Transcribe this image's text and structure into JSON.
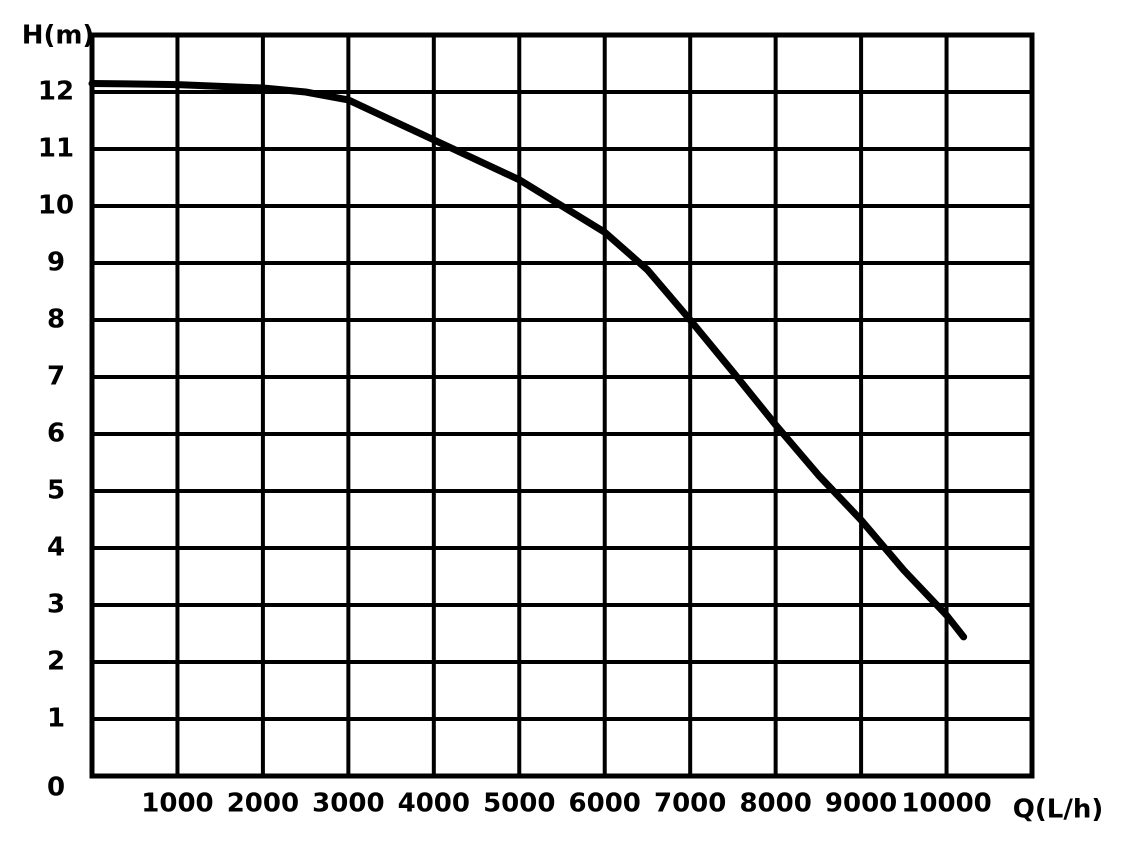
{
  "chart_data": {
    "type": "line",
    "y_label": "H(m)",
    "x_label": "Q(L/h)",
    "x": [
      0,
      1000,
      2000,
      2500,
      3000,
      4000,
      5000,
      5500,
      6000,
      6500,
      7000,
      7500,
      8000,
      8500,
      9000,
      9500,
      10000,
      10200
    ],
    "values": [
      12.15,
      12.13,
      12.07,
      12.0,
      11.86,
      11.16,
      10.46,
      10.0,
      9.54,
      8.88,
      8.0,
      7.09,
      6.16,
      5.28,
      4.49,
      3.61,
      2.82,
      2.44
    ],
    "color": "#000000",
    "xlim": [
      0,
      11000
    ],
    "xticks": [
      1000,
      2000,
      3000,
      4000,
      5000,
      6000,
      7000,
      8000,
      9000,
      10000
    ],
    "ylim": [
      0,
      13
    ],
    "yticks": [
      0,
      1,
      2,
      3,
      4,
      5,
      6,
      7,
      8,
      9,
      10,
      11,
      12
    ],
    "grid": true
  }
}
